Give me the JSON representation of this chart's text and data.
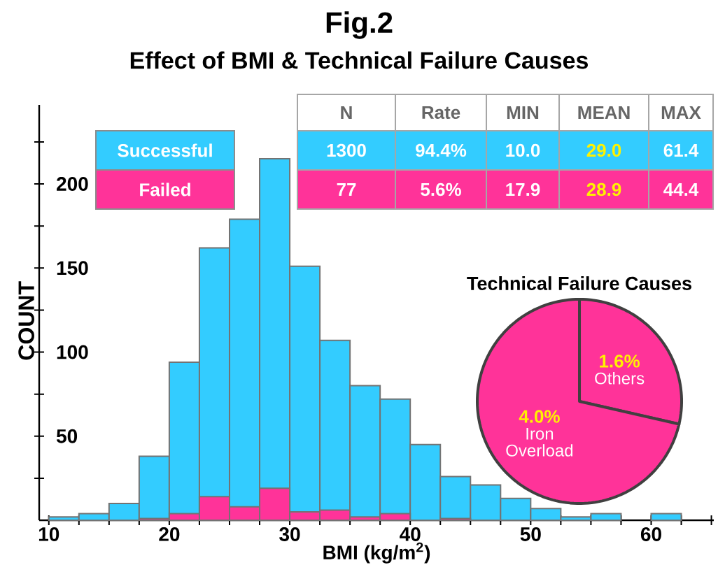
{
  "chart_data": [
    {
      "type": "histogram",
      "title": "Fig.2",
      "subtitle": "Effect of BMI & Technical Failure Causes",
      "xlabel": "BMI (kg/m$^{2}$)",
      "ylabel": "COUNT",
      "bins": [
        10,
        12.5,
        15,
        17.5,
        20,
        22.5,
        25,
        27.5,
        30,
        32.5,
        35,
        37.5,
        40,
        42.5,
        45,
        47.5,
        50,
        52.5,
        55,
        57.5,
        60,
        62.5
      ],
      "series": [
        {
          "name": "Successful",
          "color": "#33ccff",
          "values": [
            2,
            4,
            10,
            38,
            94,
            162,
            179,
            215,
            151,
            107,
            80,
            72,
            45,
            26,
            21,
            13,
            7,
            2,
            4,
            0,
            4
          ]
        },
        {
          "name": "Failed",
          "color": "#ff3399",
          "values": [
            0,
            0,
            0,
            1,
            4,
            14,
            8,
            19,
            5,
            6,
            2,
            4,
            0,
            1,
            0,
            0,
            0,
            0,
            0,
            0,
            0
          ]
        }
      ],
      "xlim": [
        9.2,
        65.2
      ],
      "ylim": [
        0,
        247
      ],
      "xticks": [
        10,
        {
          "value": 12.5,
          "label": null
        },
        {
          "value": 15,
          "label": null
        },
        {
          "value": 17.5,
          "label": null
        },
        20,
        {
          "value": 22.5,
          "label": null
        },
        {
          "value": 25,
          "label": null
        },
        {
          "value": 27.5,
          "label": null
        },
        30,
        {
          "value": 32.5,
          "label": null
        },
        {
          "value": 35,
          "label": null
        },
        {
          "value": 37.5,
          "label": null
        },
        40,
        {
          "value": 42.5,
          "label": null
        },
        {
          "value": 45,
          "label": null
        },
        {
          "value": 47.5,
          "label": null
        },
        50,
        {
          "value": 52.5,
          "label": null
        },
        {
          "value": 55,
          "label": null
        },
        {
          "value": 57.5,
          "label": null
        },
        60,
        {
          "value": 62.5,
          "label": null
        },
        {
          "value": 65,
          "label": null
        }
      ],
      "yticks": [
        {
          "value": 25,
          "label": null
        },
        50,
        {
          "value": 75,
          "label": null
        },
        100,
        {
          "value": 125,
          "label": null
        },
        150,
        {
          "value": 175,
          "label": null
        },
        200,
        {
          "value": 225,
          "label": null
        }
      ],
      "legend": "top left",
      "annotations": [
        "N",
        "Rate",
        "MIN",
        "MEAN",
        "MAX",
        "1300",
        "94.4%",
        "10.0",
        "29.0",
        "61.4",
        "77",
        "5.6%",
        "17.9",
        "28.9",
        "44.4"
      ]
    },
    {
      "type": "pie",
      "title": "Technical Failure Causes",
      "categories": [
        "Others",
        "Iron Overload"
      ],
      "values": [
        1.6,
        4.0
      ],
      "colors": [
        "#ff3399",
        "#ff3399"
      ],
      "value_labels": [
        "1.6%",
        "4.0%"
      ]
    }
  ]
}
